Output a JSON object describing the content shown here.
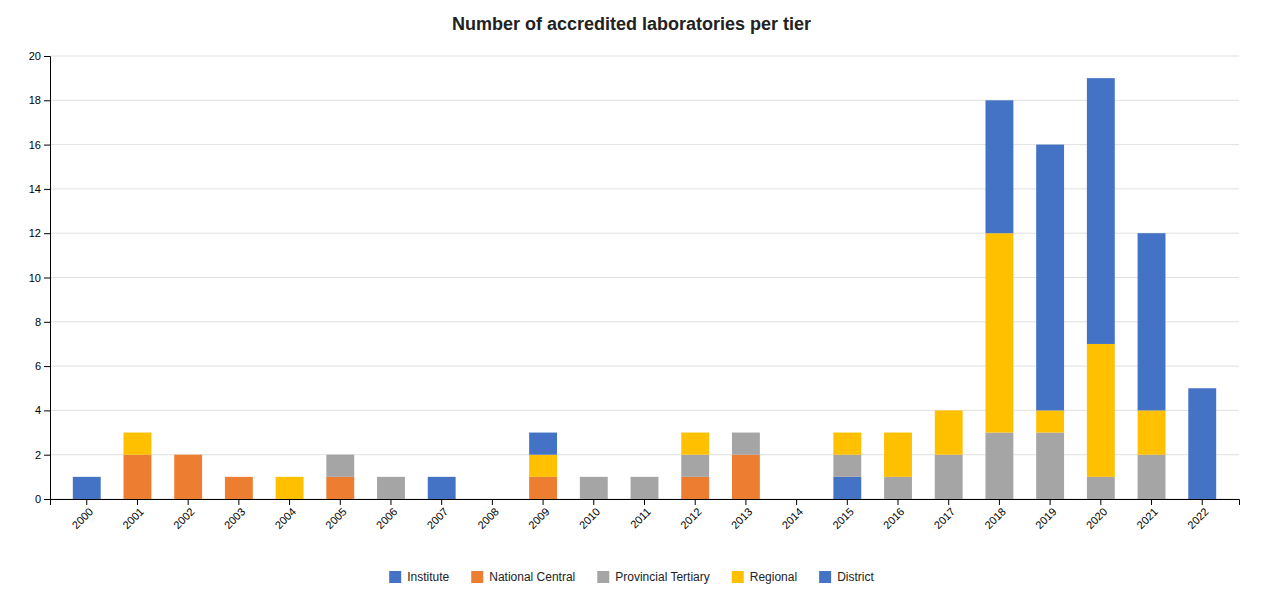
{
  "chart_data": {
    "type": "bar",
    "stacked": true,
    "title": "Number of accredited laboratories per tier",
    "categories": [
      "2000",
      "2001",
      "2002",
      "2003",
      "2004",
      "2005",
      "2006",
      "2007",
      "2008",
      "2009",
      "2010",
      "2011",
      "2012",
      "2013",
      "2014",
      "2015",
      "2016",
      "2017",
      "2018",
      "2019",
      "2020",
      "2021",
      "2022"
    ],
    "series": [
      {
        "name": "Institute",
        "color": "#4472C4",
        "values": [
          1,
          0,
          0,
          0,
          0,
          0,
          0,
          1,
          0,
          0,
          0,
          0,
          0,
          0,
          0,
          1,
          0,
          0,
          0,
          0,
          0,
          0,
          0
        ]
      },
      {
        "name": "National Central",
        "color": "#ED7D31",
        "values": [
          0,
          2,
          2,
          1,
          0,
          1,
          0,
          0,
          0,
          1,
          0,
          0,
          1,
          2,
          0,
          0,
          0,
          0,
          0,
          0,
          0,
          0,
          0
        ]
      },
      {
        "name": "Provincial Tertiary",
        "color": "#A5A5A5",
        "values": [
          0,
          0,
          0,
          0,
          0,
          1,
          1,
          0,
          0,
          0,
          1,
          1,
          1,
          1,
          0,
          1,
          1,
          2,
          3,
          3,
          1,
          2,
          0
        ]
      },
      {
        "name": "Regional",
        "color": "#FFC000",
        "values": [
          0,
          1,
          0,
          0,
          1,
          0,
          0,
          0,
          0,
          1,
          0,
          0,
          1,
          0,
          0,
          1,
          2,
          2,
          9,
          1,
          6,
          2,
          0
        ]
      },
      {
        "name": "District",
        "color": "#4472C4",
        "values": [
          0,
          0,
          0,
          0,
          0,
          0,
          0,
          0,
          0,
          1,
          0,
          0,
          0,
          0,
          0,
          0,
          0,
          0,
          6,
          12,
          12,
          8,
          5
        ]
      }
    ],
    "ylim": [
      0,
      20
    ],
    "yticks": [
      0,
      2,
      4,
      6,
      8,
      10,
      12,
      14,
      16,
      18,
      20
    ],
    "grid": true,
    "legend": "bottom"
  }
}
